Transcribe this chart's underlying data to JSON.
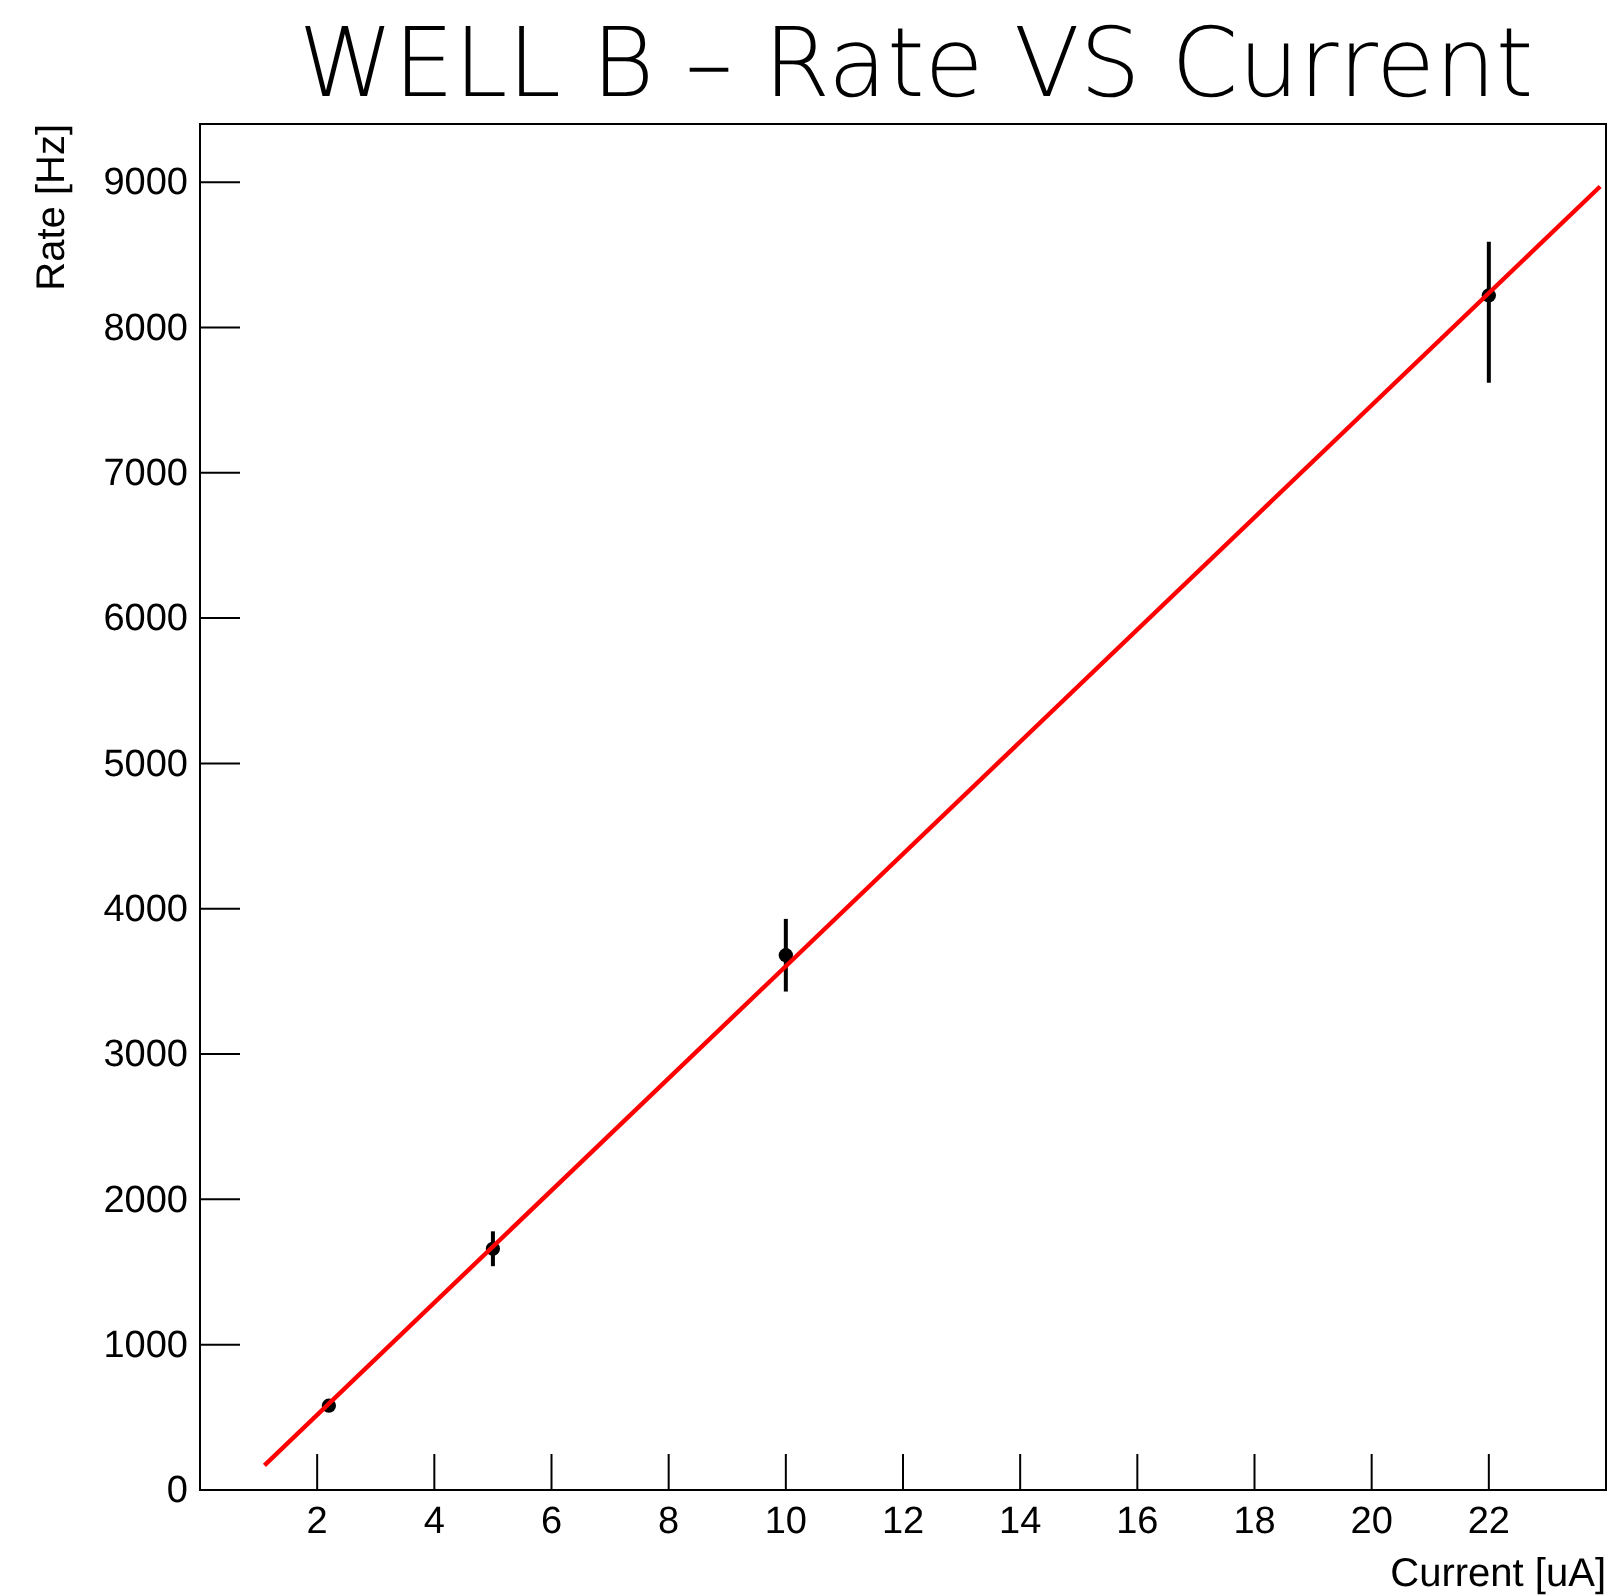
{
  "chart_data": {
    "type": "scatter",
    "title": "WELL B – Rate VS Current",
    "xlabel": "Current [uA]",
    "ylabel": "Rate [Hz]",
    "xlim": [
      0,
      24
    ],
    "ylim": [
      0,
      9400
    ],
    "xticks": [
      2,
      4,
      6,
      8,
      10,
      12,
      14,
      16,
      18,
      20,
      22
    ],
    "yticks": [
      0,
      1000,
      2000,
      3000,
      4000,
      5000,
      6000,
      7000,
      8000,
      9000
    ],
    "grid": false,
    "series": [
      {
        "color": "#000000",
        "marker": "circle",
        "x": [
          2.2,
          5,
          10,
          22
        ],
        "values": [
          580,
          1660,
          3680,
          8220
        ],
        "errors": [
          40,
          120,
          250,
          [
            7620,
            8590
          ]
        ]
      },
      {
        "type": "line",
        "color": "#ff0000",
        "x": [
          1.1,
          23.9
        ],
        "values": [
          170,
          8970
        ]
      }
    ]
  }
}
